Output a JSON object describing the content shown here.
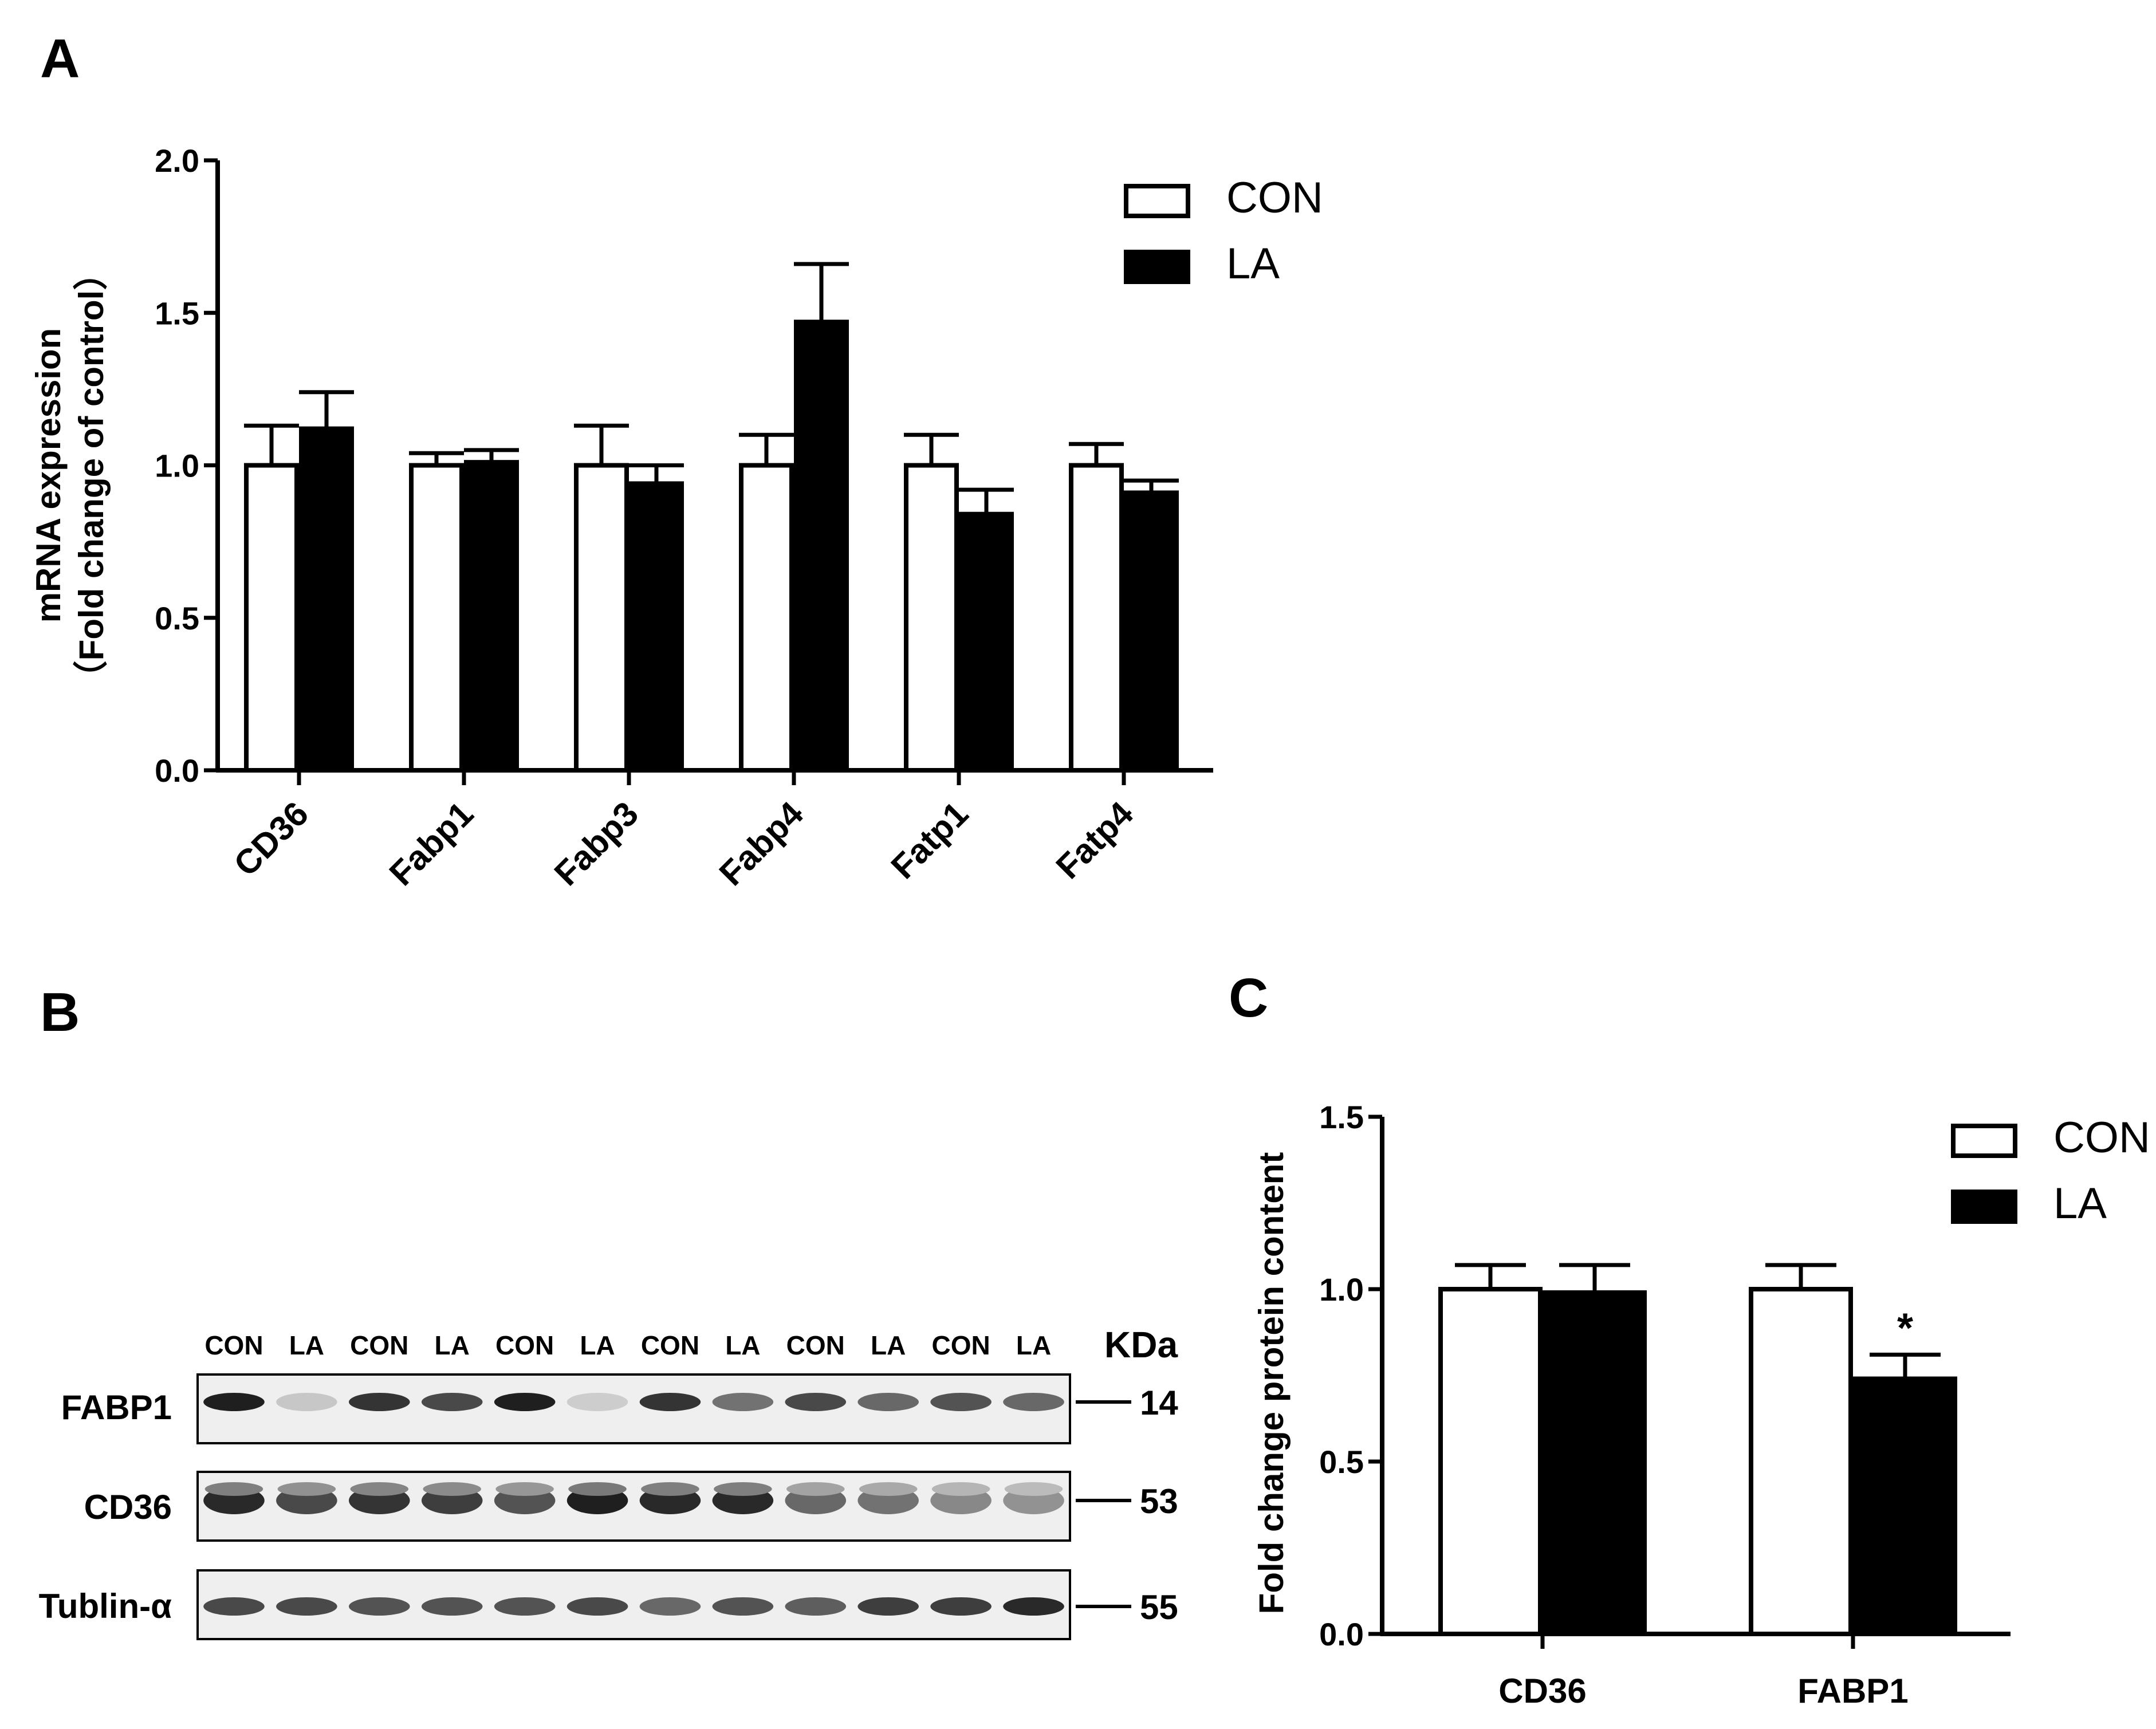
{
  "panels": {
    "a": "A",
    "b": "B",
    "c": "C"
  },
  "chart_data": [
    {
      "type": "bar",
      "panel": "A",
      "categories": [
        "CD36",
        "Fabp1",
        "Fabp3",
        "Fabp4",
        "Fatp1",
        "Fatp4"
      ],
      "series": [
        {
          "name": "CON",
          "color": "#ffffff",
          "values": [
            1.0,
            1.0,
            1.0,
            1.0,
            1.0,
            1.0
          ],
          "errors": [
            0.13,
            0.04,
            0.13,
            0.1,
            0.1,
            0.07
          ]
        },
        {
          "name": "LA",
          "color": "#000000",
          "values": [
            1.12,
            1.01,
            0.94,
            1.47,
            0.84,
            0.91
          ],
          "errors": [
            0.12,
            0.04,
            0.06,
            0.19,
            0.08,
            0.04
          ]
        }
      ],
      "ylabel_line1": "mRNA expression",
      "ylabel_line2": "（Fold change of control）",
      "ylim": [
        0,
        2.0
      ],
      "yticks": [
        "0.0",
        "0.5",
        "1.0",
        "1.5",
        "2.0"
      ],
      "legend": [
        "CON",
        "LA"
      ],
      "legend_position": "top-right"
    },
    {
      "type": "bar",
      "panel": "C",
      "categories": [
        "CD36",
        "FABP1"
      ],
      "series": [
        {
          "name": "CON",
          "color": "#ffffff",
          "values": [
            1.0,
            1.0
          ],
          "errors": [
            0.07,
            0.07
          ]
        },
        {
          "name": "LA",
          "color": "#000000",
          "values": [
            0.99,
            0.74
          ],
          "errors": [
            0.08,
            0.07
          ]
        }
      ],
      "annotations": [
        {
          "category": "FABP1",
          "series": "LA",
          "text": "*"
        }
      ],
      "ylabel": "Fold change protein content",
      "ylim": [
        0,
        1.5
      ],
      "yticks": [
        "0.0",
        "0.5",
        "1.0",
        "1.5"
      ],
      "legend": [
        "CON",
        "LA"
      ],
      "legend_position": "top-right"
    }
  ],
  "blot": {
    "lanes": [
      "CON",
      "LA",
      "CON",
      "LA",
      "CON",
      "LA",
      "CON",
      "LA",
      "CON",
      "LA",
      "CON",
      "LA"
    ],
    "kda_label": "KDa",
    "rows": [
      {
        "name": "FABP1",
        "kda": "14",
        "intensity": [
          0.95,
          0.15,
          0.85,
          0.75,
          0.95,
          0.12,
          0.85,
          0.55,
          0.75,
          0.6,
          0.7,
          0.6
        ]
      },
      {
        "name": "CD36",
        "kda": "53",
        "intensity": [
          0.9,
          0.75,
          0.85,
          0.8,
          0.7,
          0.95,
          0.9,
          0.9,
          0.6,
          0.55,
          0.45,
          0.4
        ]
      },
      {
        "name": "Tublin-α",
        "kda": "55",
        "intensity": [
          0.75,
          0.75,
          0.7,
          0.7,
          0.7,
          0.75,
          0.6,
          0.7,
          0.65,
          0.8,
          0.8,
          0.9
        ]
      }
    ]
  }
}
